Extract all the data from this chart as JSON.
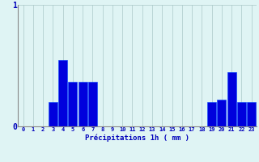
{
  "values": [
    0,
    0,
    0,
    0.2,
    0.55,
    0.37,
    0.37,
    0.37,
    0,
    0,
    0,
    0,
    0,
    0,
    0,
    0,
    0,
    0,
    0,
    0.2,
    0.22,
    0.45,
    0.2,
    0.2
  ],
  "bar_color": "#0000dd",
  "bar_edge_color": "#0044ff",
  "background_color": "#dff4f4",
  "grid_color": "#aac8c8",
  "axis_label_color": "#0000bb",
  "tick_color": "#0000bb",
  "xlabel": "Précipitations 1h ( mm )",
  "ylim": [
    0,
    1.0
  ],
  "ytick_labels": [
    "0",
    "1"
  ],
  "ytick_vals": [
    0,
    1
  ],
  "num_bars": 24,
  "figsize": [
    3.2,
    2.0
  ],
  "dpi": 100
}
